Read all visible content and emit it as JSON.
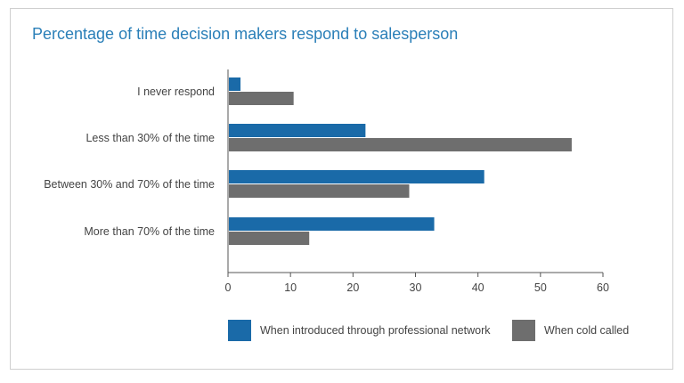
{
  "chart_data": {
    "type": "bar",
    "orientation": "horizontal",
    "title": "Percentage of time decision makers respond to salesperson",
    "categories": [
      "I never respond",
      "Less than 30% of the time",
      "Between 30% and 70% of the time",
      "More than 70% of the time"
    ],
    "series": [
      {
        "name": "When introduced through professional network",
        "color": "#1a6aa8",
        "values": [
          2,
          22,
          41,
          33
        ]
      },
      {
        "name": "When cold called",
        "color": "#6e6e6e",
        "values": [
          10.5,
          55,
          29,
          13
        ]
      }
    ],
    "xlim": [
      0,
      60
    ],
    "xticks": [
      0,
      10,
      20,
      30,
      40,
      50,
      60
    ],
    "grid": false,
    "legend_position": "bottom"
  }
}
